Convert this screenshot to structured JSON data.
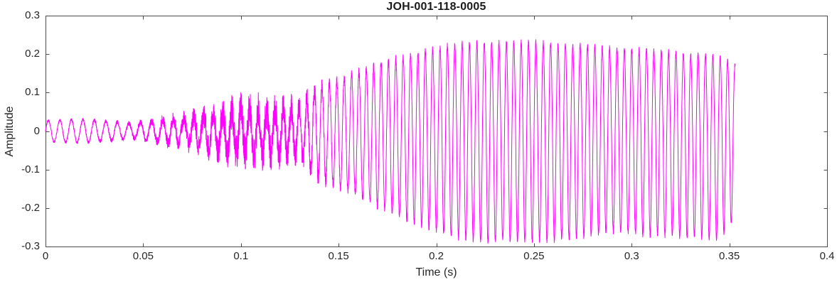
{
  "chart_data": {
    "type": "line",
    "title": "JOH-001-118-0005",
    "xlabel": "Time (s)",
    "ylabel": "Amplitude",
    "xlim": [
      0,
      0.4
    ],
    "ylim": [
      -0.3,
      0.3
    ],
    "xticks": [
      0,
      0.05,
      0.1,
      0.15,
      0.2,
      0.25,
      0.3,
      0.35,
      0.4
    ],
    "xtick_labels": [
      "0",
      "0.05",
      "0.1",
      "0.15",
      "0.2",
      "0.25",
      "0.3",
      "0.35",
      "0.4"
    ],
    "yticks": [
      -0.3,
      -0.2,
      -0.1,
      0,
      0.1,
      0.2,
      0.3
    ],
    "ytick_labels": [
      "-0.3",
      "-0.2",
      "-0.1",
      "0",
      "0.1",
      "0.2",
      "0.3"
    ],
    "grid": false,
    "line_color": "#ff00ff",
    "axis_color": "#4d4d4d",
    "text_color": "#262626",
    "signal": {
      "t_start": 0,
      "t_end": 0.353,
      "carrier_freq_hz": {
        "start": 170,
        "end": 265,
        "ramp_start_t": 0.05,
        "ramp_end_t": 0.145
      },
      "upper_envelope": [
        [
          0,
          0.028
        ],
        [
          0.02,
          0.03
        ],
        [
          0.045,
          0.02
        ],
        [
          0.06,
          0.03
        ],
        [
          0.075,
          0.035
        ],
        [
          0.09,
          0.05
        ],
        [
          0.1,
          0.055
        ],
        [
          0.115,
          0.055
        ],
        [
          0.13,
          0.06
        ],
        [
          0.138,
          0.11
        ],
        [
          0.148,
          0.13
        ],
        [
          0.158,
          0.15
        ],
        [
          0.168,
          0.17
        ],
        [
          0.18,
          0.19
        ],
        [
          0.195,
          0.21
        ],
        [
          0.21,
          0.225
        ],
        [
          0.22,
          0.23
        ],
        [
          0.255,
          0.23
        ],
        [
          0.27,
          0.225
        ],
        [
          0.29,
          0.215
        ],
        [
          0.31,
          0.21
        ],
        [
          0.33,
          0.2
        ],
        [
          0.345,
          0.195
        ],
        [
          0.351,
          0.18
        ],
        [
          0.353,
          0.17
        ]
      ],
      "lower_envelope": [
        [
          0,
          -0.028
        ],
        [
          0.02,
          -0.03
        ],
        [
          0.045,
          -0.02
        ],
        [
          0.06,
          -0.03
        ],
        [
          0.075,
          -0.035
        ],
        [
          0.09,
          -0.05
        ],
        [
          0.1,
          -0.06
        ],
        [
          0.115,
          -0.06
        ],
        [
          0.13,
          -0.065
        ],
        [
          0.138,
          -0.12
        ],
        [
          0.148,
          -0.14
        ],
        [
          0.158,
          -0.16
        ],
        [
          0.168,
          -0.19
        ],
        [
          0.18,
          -0.22
        ],
        [
          0.195,
          -0.25
        ],
        [
          0.21,
          -0.275
        ],
        [
          0.22,
          -0.285
        ],
        [
          0.255,
          -0.285
        ],
        [
          0.27,
          -0.28
        ],
        [
          0.29,
          -0.26
        ],
        [
          0.31,
          -0.27
        ],
        [
          0.33,
          -0.275
        ],
        [
          0.345,
          -0.28
        ],
        [
          0.351,
          -0.24
        ],
        [
          0.353,
          -0.21
        ]
      ],
      "noise_envelope": [
        [
          0,
          0.003
        ],
        [
          0.04,
          0.005
        ],
        [
          0.055,
          0.01
        ],
        [
          0.07,
          0.02
        ],
        [
          0.085,
          0.035
        ],
        [
          0.095,
          0.045
        ],
        [
          0.105,
          0.05
        ],
        [
          0.115,
          0.045
        ],
        [
          0.125,
          0.04
        ],
        [
          0.135,
          0.03
        ],
        [
          0.145,
          0.015
        ],
        [
          0.16,
          0.01
        ],
        [
          0.2,
          0.008
        ],
        [
          0.3,
          0.008
        ],
        [
          0.353,
          0.006
        ]
      ]
    }
  }
}
